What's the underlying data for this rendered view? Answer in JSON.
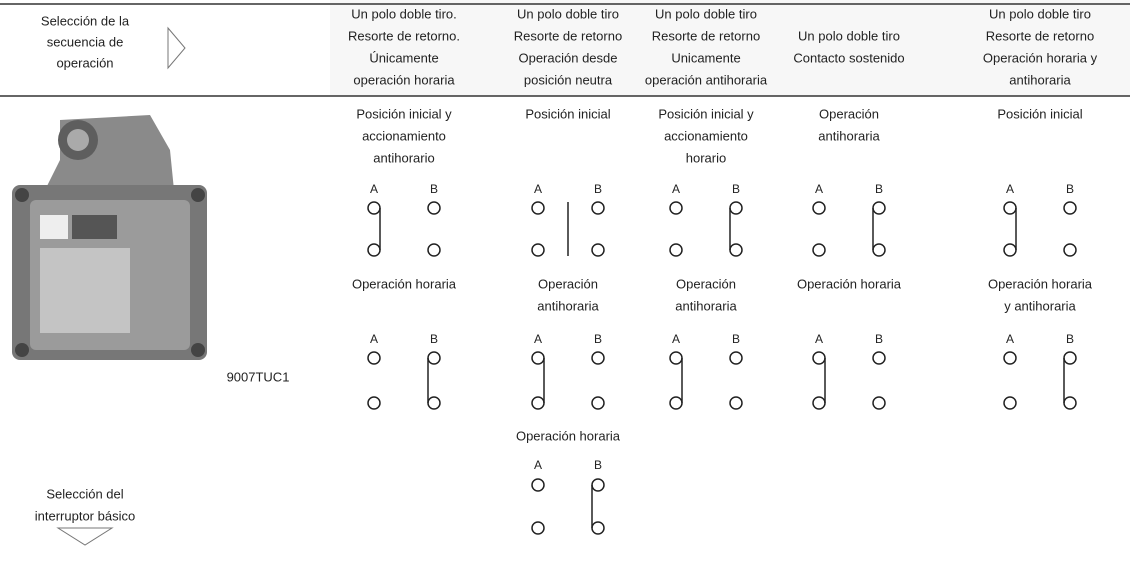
{
  "header": {
    "selection": [
      "Selección de la",
      "secuencia de",
      "operación"
    ],
    "columns": [
      [
        "Un polo doble tiro.",
        "Resorte de retorno.",
        "Únicamente",
        "operación horaria"
      ],
      [
        "Un polo doble tiro",
        "Resorte de retorno",
        "Operación desde",
        "posición neutra"
      ],
      [
        "Un polo doble tiro",
        "Resorte de retorno",
        "Unicamente",
        "operación antihoraria"
      ],
      [
        "Un polo doble tiro",
        "Contacto sostenido"
      ],
      [
        "Un polo doble tiro",
        "Resorte de retorno",
        "Operación horaria y",
        "antihoraria"
      ]
    ]
  },
  "model": "9007TUC1",
  "columns": [
    {
      "diagrams": [
        {
          "caption": [
            "Posición inicial y",
            "accionamiento",
            "antihorario"
          ],
          "labels": [
            "A",
            "B"
          ]
        },
        {
          "caption": [
            "Operación horaria"
          ],
          "labels": [
            "A",
            "B"
          ]
        }
      ]
    },
    {
      "diagrams": [
        {
          "caption": [
            "Posición inicial"
          ],
          "labels": [
            "A",
            "B"
          ]
        },
        {
          "caption": [
            "Operación",
            "antihoraria"
          ],
          "labels": [
            "A",
            "B"
          ]
        },
        {
          "caption": [
            "Operación horaria"
          ],
          "labels": [
            "A",
            "B"
          ]
        }
      ]
    },
    {
      "diagrams": [
        {
          "caption": [
            "Posición inicial y",
            "accionamiento",
            "horario"
          ],
          "labels": [
            "A",
            "B"
          ]
        },
        {
          "caption": [
            "Operación",
            "antihoraria"
          ],
          "labels": [
            "A",
            "B"
          ]
        }
      ]
    },
    {
      "diagrams": [
        {
          "caption": [
            "Operación",
            "antihoraria"
          ],
          "labels": [
            "A",
            "B"
          ]
        },
        {
          "caption": [
            "Operación horaria"
          ],
          "labels": [
            "A",
            "B"
          ]
        }
      ]
    },
    {
      "diagrams": [
        {
          "caption": [
            "Posición inicial"
          ],
          "labels": [
            "A",
            "B"
          ]
        },
        {
          "caption": [
            "Operación horaria",
            "y antihoraria"
          ],
          "labels": [
            "A",
            "B"
          ]
        }
      ]
    }
  ],
  "footer": [
    "Selección del",
    "interruptor básico"
  ]
}
